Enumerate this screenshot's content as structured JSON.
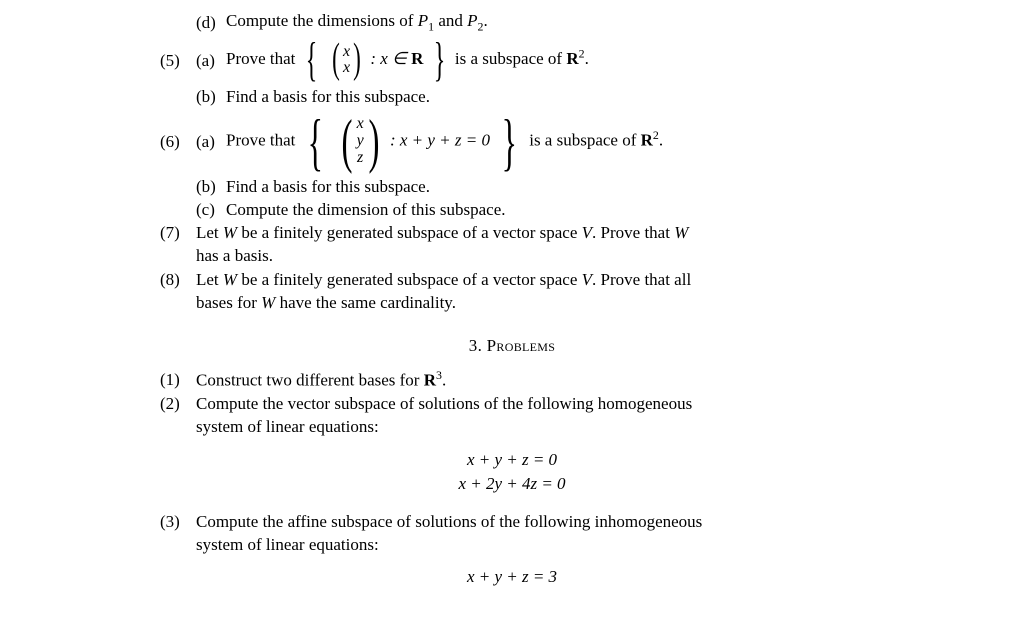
{
  "font": {
    "family": "Computer Modern",
    "body_pt": 11,
    "color": "#000000"
  },
  "background": "#ffffff",
  "item_d": {
    "label": "(d)",
    "text_pre": "Compute the dimensions of ",
    "P1": "P",
    "P1sub": "1",
    "and": " and ",
    "P2": "P",
    "P2sub": "2",
    "period": "."
  },
  "item5": {
    "label": "(5)",
    "a": {
      "label": "(a)",
      "pre": "Prove that ",
      "set_cond": " : x ∈ ",
      "R": "R",
      "post": " is a subspace of ",
      "R2": "R",
      "R2sup": "2",
      "period": "."
    },
    "b": {
      "label": "(b)",
      "text": "Find a basis for this subspace."
    },
    "vec": {
      "top": "x",
      "bot": "x"
    }
  },
  "item6": {
    "label": "(6)",
    "a": {
      "label": "(a)",
      "pre": "Prove that ",
      "cond": " : x + y + z = 0",
      "post": " is a subspace of ",
      "R2": "R",
      "R2sup": "2",
      "period": "."
    },
    "b": {
      "label": "(b)",
      "text": "Find a basis for this subspace."
    },
    "c": {
      "label": "(c)",
      "text": "Compute the dimension of this subspace."
    },
    "vec": {
      "top": "x",
      "mid": "y",
      "bot": "z"
    }
  },
  "item7": {
    "label": "(7)",
    "line1_a": "Let ",
    "W": "W",
    "line1_b": " be a finitely generated subspace of a vector space ",
    "V": "V",
    "line1_c": ". Prove that ",
    "W2": "W",
    "line2": "has a basis."
  },
  "item8": {
    "label": "(8)",
    "line1_a": "Let ",
    "W": "W",
    "line1_b": " be a finitely generated subspace of a vector space ",
    "V": "V",
    "line1_c": ". Prove that all",
    "line2_a": "bases for ",
    "W2": "W",
    "line2_b": " have the same cardinality."
  },
  "section": {
    "num": "3. ",
    "title": "Problems"
  },
  "p1": {
    "label": "(1)",
    "a": "Construct two different bases for ",
    "R": "R",
    "sup": "3",
    "period": "."
  },
  "p2": {
    "label": "(2)",
    "line1": "Compute the vector subspace of solutions of the following homogeneous",
    "line2": "system of linear equations:",
    "eq1": "x + y + z = 0",
    "eq2": "x + 2y + 4z = 0"
  },
  "p3": {
    "label": "(3)",
    "line1": "Compute the affine subspace of solutions of the following inhomogeneous",
    "line2": "system of linear equations:",
    "eq1": "x + y + z = 3"
  }
}
